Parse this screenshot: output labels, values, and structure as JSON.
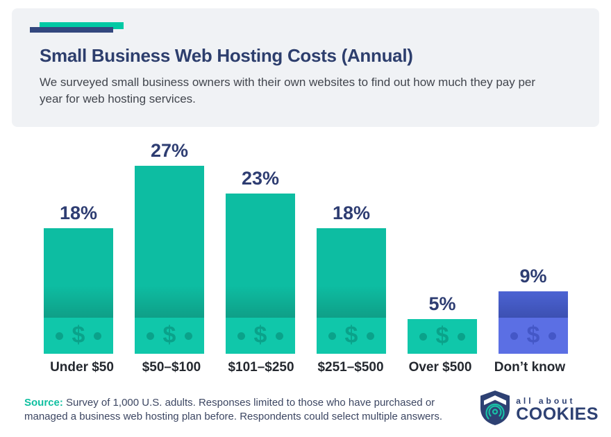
{
  "header": {
    "title": "Small Business Web Hosting Costs (Annual)",
    "subtitle": "We surveyed small business owners with their own websites to find out how much they pay per year for web hosting services.",
    "accent_teal": "#00c9a4",
    "accent_navy": "#33477e",
    "title_color": "#2d3e6d",
    "subtitle_color": "#41454d",
    "card_bg": "#f0f2f5"
  },
  "chart_data": {
    "type": "bar",
    "title": "Small Business Web Hosting Costs (Annual)",
    "categories": [
      "Under $50",
      "$50–$100",
      "$101–$250",
      "$251–$500",
      "Over $500",
      "Don’t know"
    ],
    "values": [
      18,
      27,
      23,
      18,
      5,
      9
    ],
    "value_suffix": "%",
    "ylim": [
      0,
      28
    ],
    "grid": false,
    "bar_styles": [
      "teal",
      "teal",
      "teal",
      "teal",
      "teal",
      "blue"
    ],
    "palette": {
      "teal": {
        "main": "#0dbda2",
        "shade": "#0f9f87",
        "strip": "#10c7aa",
        "icon": "#0aa28a"
      },
      "blue": {
        "main": "#4c63d3",
        "shade": "#3c50b2",
        "strip": "#5b6fe4",
        "icon": "#4457c7"
      }
    },
    "value_label_color": "#2e3d72",
    "category_label_color": "#24282f",
    "bar_icon": "dollar-sign-with-dots"
  },
  "footer": {
    "source_label": "Source:",
    "source_text": " Survey of 1,000 U.S. adults. Responses limited to those who have purchased or managed a business web hosting plan before. Respondents could select multiple answers.",
    "source_label_color": "#0fbfa0",
    "source_text_color": "#3c4662",
    "logo_top": "all about",
    "logo_bottom": "COOKIES",
    "logo_color": "#2e4173",
    "logo_fingerprint_color": "#19c0a6"
  }
}
